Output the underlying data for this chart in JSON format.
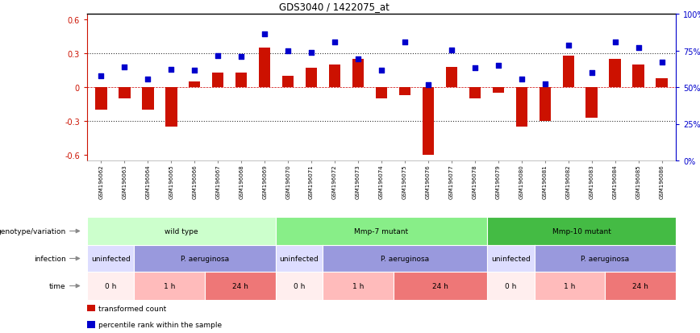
{
  "title": "GDS3040 / 1422075_at",
  "samples": [
    "GSM196062",
    "GSM196063",
    "GSM196064",
    "GSM196065",
    "GSM196066",
    "GSM196067",
    "GSM196068",
    "GSM196069",
    "GSM196070",
    "GSM196071",
    "GSM196072",
    "GSM196073",
    "GSM196074",
    "GSM196075",
    "GSM196076",
    "GSM196077",
    "GSM196078",
    "GSM196079",
    "GSM196080",
    "GSM196081",
    "GSM196082",
    "GSM196083",
    "GSM196084",
    "GSM196085",
    "GSM196086"
  ],
  "bar_values": [
    -0.2,
    -0.1,
    -0.2,
    -0.35,
    0.05,
    0.13,
    0.13,
    0.35,
    0.1,
    0.17,
    0.2,
    0.25,
    -0.1,
    -0.07,
    -0.6,
    0.18,
    -0.1,
    -0.05,
    -0.35,
    -0.3,
    0.28,
    -0.27,
    0.25,
    0.2,
    0.08
  ],
  "dot_values": [
    0.1,
    0.18,
    0.07,
    0.16,
    0.15,
    0.28,
    0.27,
    0.47,
    0.32,
    0.31,
    0.4,
    0.25,
    0.15,
    0.4,
    0.02,
    0.33,
    0.17,
    0.19,
    0.07,
    0.03,
    0.37,
    0.13,
    0.4,
    0.35,
    0.22
  ],
  "ylim_left": [
    -0.65,
    0.65
  ],
  "yticks_left": [
    -0.6,
    -0.3,
    0.0,
    0.3,
    0.6
  ],
  "ytick_labels_left": [
    "-0.6",
    "-0.3",
    "0",
    "0.3",
    "0.6"
  ],
  "ytick_labels_right": [
    "0%",
    "25%",
    "50%",
    "75%",
    "100%"
  ],
  "bar_color": "#CC1100",
  "dot_color": "#0000CC",
  "genotype_groups": [
    {
      "label": "wild type",
      "start": 0,
      "end": 7,
      "color": "#CCFFCC"
    },
    {
      "label": "Mmp-7 mutant",
      "start": 8,
      "end": 16,
      "color": "#88EE88"
    },
    {
      "label": "Mmp-10 mutant",
      "start": 17,
      "end": 24,
      "color": "#44BB44"
    }
  ],
  "infection_groups": [
    {
      "label": "uninfected",
      "start": 0,
      "end": 1,
      "color": "#DDDDFF"
    },
    {
      "label": "P. aeruginosa",
      "start": 2,
      "end": 7,
      "color": "#9999DD"
    },
    {
      "label": "uninfected",
      "start": 8,
      "end": 9,
      "color": "#DDDDFF"
    },
    {
      "label": "P. aeruginosa",
      "start": 10,
      "end": 16,
      "color": "#9999DD"
    },
    {
      "label": "uninfected",
      "start": 17,
      "end": 18,
      "color": "#DDDDFF"
    },
    {
      "label": "P. aeruginosa",
      "start": 19,
      "end": 24,
      "color": "#9999DD"
    }
  ],
  "time_groups": [
    {
      "label": "0 h",
      "start": 0,
      "end": 1,
      "color": "#FFEEEE"
    },
    {
      "label": "1 h",
      "start": 2,
      "end": 4,
      "color": "#FFBBBB"
    },
    {
      "label": "24 h",
      "start": 5,
      "end": 7,
      "color": "#EE7777"
    },
    {
      "label": "0 h",
      "start": 8,
      "end": 9,
      "color": "#FFEEEE"
    },
    {
      "label": "1 h",
      "start": 10,
      "end": 12,
      "color": "#FFBBBB"
    },
    {
      "label": "24 h",
      "start": 13,
      "end": 16,
      "color": "#EE7777"
    },
    {
      "label": "0 h",
      "start": 17,
      "end": 18,
      "color": "#FFEEEE"
    },
    {
      "label": "1 h",
      "start": 19,
      "end": 21,
      "color": "#FFBBBB"
    },
    {
      "label": "24 h",
      "start": 22,
      "end": 24,
      "color": "#EE7777"
    }
  ],
  "row_labels": [
    "genotype/variation",
    "infection",
    "time"
  ],
  "legend_items": [
    {
      "label": "transformed count",
      "color": "#CC1100"
    },
    {
      "label": "percentile rank within the sample",
      "color": "#0000CC"
    }
  ]
}
